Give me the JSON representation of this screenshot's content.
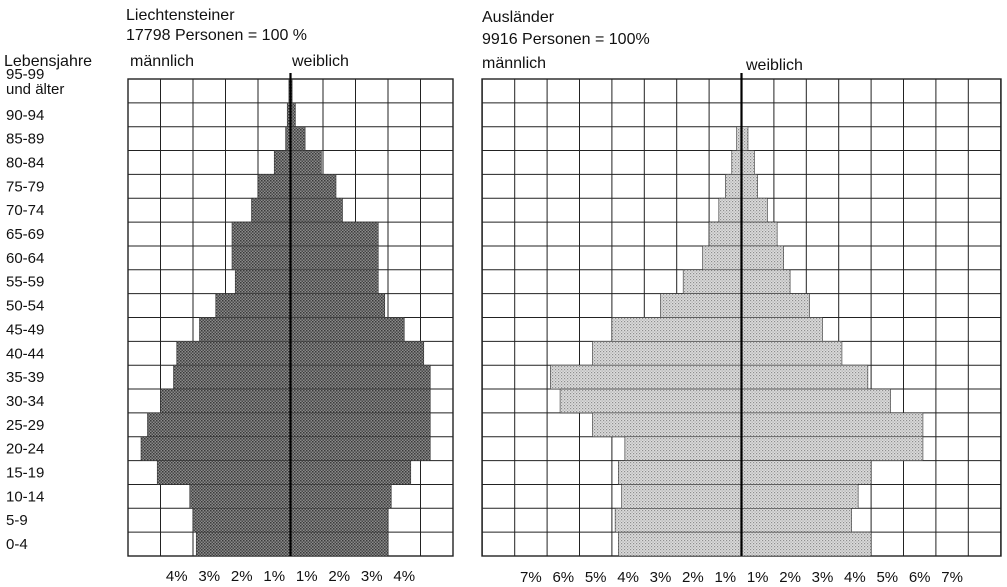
{
  "age_axis_title": "Lebensjahre",
  "age_groups": [
    "95-99\nund älter",
    "90-94",
    "85-89",
    "80-84",
    "75-79",
    "70-74",
    "65-69",
    "60-64",
    "55-59",
    "50-54",
    "45-49",
    "40-44",
    "35-39",
    "30-34",
    "25-29",
    "20-24",
    "15-19",
    "10-14",
    "5-9",
    "0-4"
  ],
  "colors": {
    "liechtensteiner_bars": "#6b6b6b",
    "auslaender_bars": "#c9c9c9",
    "grid": "#222222"
  },
  "chart_data": [
    {
      "type": "bar",
      "orientation": "horizontal-pyramid",
      "title": "Liechtensteiner",
      "subtitle": "17798 Personen = 100 %",
      "left_label": "männlich",
      "right_label": "weiblich",
      "xlim": [
        -5,
        5
      ],
      "x_ticks_left": [
        "4%",
        "3%",
        "2%",
        "1%"
      ],
      "x_ticks_right": [
        "1%",
        "2%",
        "3%",
        "4%"
      ],
      "categories": [
        "95-99 und älter",
        "90-94",
        "85-89",
        "80-84",
        "75-79",
        "70-74",
        "65-69",
        "60-64",
        "55-59",
        "50-54",
        "45-49",
        "40-44",
        "35-39",
        "30-34",
        "25-29",
        "20-24",
        "15-19",
        "10-14",
        "5-9",
        "0-4"
      ],
      "series": [
        {
          "name": "männlich",
          "values": [
            0.05,
            0.1,
            0.15,
            0.5,
            1.0,
            1.2,
            1.8,
            1.8,
            1.7,
            2.3,
            2.8,
            3.5,
            3.6,
            4.0,
            4.4,
            4.6,
            4.1,
            3.1,
            3.0,
            2.9
          ]
        },
        {
          "name": "weiblich",
          "values": [
            0.05,
            0.15,
            0.45,
            0.95,
            1.4,
            1.6,
            2.7,
            2.7,
            2.7,
            2.9,
            3.5,
            4.1,
            4.3,
            4.3,
            4.3,
            4.3,
            3.7,
            3.1,
            3.0,
            3.0
          ]
        }
      ]
    },
    {
      "type": "bar",
      "orientation": "horizontal-pyramid",
      "title": "Ausländer",
      "subtitle": "9916 Personen = 100%",
      "left_label": "männlich",
      "right_label": "weiblich",
      "xlim": [
        -8,
        8
      ],
      "x_ticks_left": [
        "7%",
        "6%",
        "5%",
        "4%",
        "3%",
        "2%",
        "1%"
      ],
      "x_ticks_right": [
        "1%",
        "2%",
        "3%",
        "4%",
        "5%",
        "6%",
        "7%"
      ],
      "categories": [
        "95-99 und älter",
        "90-94",
        "85-89",
        "80-84",
        "75-79",
        "70-74",
        "65-69",
        "60-64",
        "55-59",
        "50-54",
        "45-49",
        "40-44",
        "35-39",
        "30-34",
        "25-29",
        "20-24",
        "15-19",
        "10-14",
        "5-9",
        "0-4"
      ],
      "series": [
        {
          "name": "männlich",
          "values": [
            0.0,
            0.0,
            0.15,
            0.3,
            0.5,
            0.7,
            1.0,
            1.2,
            1.8,
            2.5,
            4.0,
            4.6,
            5.9,
            5.6,
            4.6,
            3.6,
            3.8,
            3.7,
            3.9,
            3.8
          ]
        },
        {
          "name": "weiblich",
          "values": [
            0.0,
            0.0,
            0.2,
            0.4,
            0.5,
            0.8,
            1.1,
            1.3,
            1.5,
            2.1,
            2.5,
            3.1,
            3.9,
            4.6,
            5.6,
            5.6,
            4.0,
            3.6,
            3.4,
            4.0
          ]
        }
      ]
    }
  ]
}
